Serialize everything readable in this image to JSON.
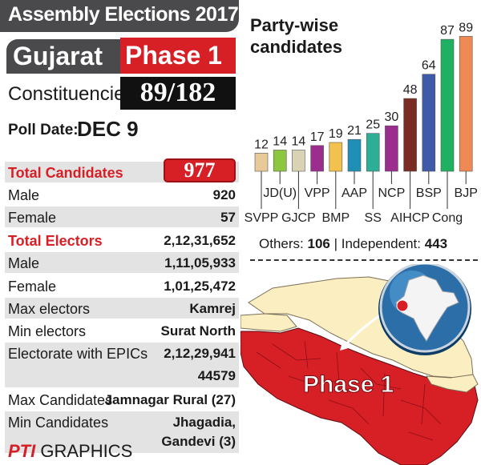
{
  "header": {
    "title": "Assembly Elections 2017"
  },
  "state": "Gujarat",
  "phase": "Phase 1",
  "constituencies": {
    "label": "Constituencies",
    "value": "89/182"
  },
  "poll_date": {
    "label": "Poll Date:",
    "value": "DEC 9"
  },
  "stats": {
    "total_candidates": {
      "label": "Total Candidates",
      "value": "977"
    },
    "male_candidates": {
      "label": "Male",
      "value": "920"
    },
    "female_candidates": {
      "label": "Female",
      "value": "57"
    },
    "total_electors": {
      "label": "Total Electors",
      "value": "2,12,31,652"
    },
    "male_electors": {
      "label": "Male",
      "value": "1,11,05,933"
    },
    "female_electors": {
      "label": "Female",
      "value": "1,01,25,472"
    },
    "max_electors": {
      "label": "Max electors",
      "value": "Kamrej"
    },
    "min_electors": {
      "label": "Min electors",
      "value": "Surat North"
    },
    "epic": {
      "label": "Electorate with EPICs",
      "value": "2,12,29,941",
      "value2": "44579"
    },
    "max_candidates": {
      "label": "Max Candidates",
      "value": "Jamnagar Rural (27)"
    },
    "min_candidates": {
      "label": "Min Candidates",
      "value": "Jhagadia,",
      "value2": "Gandevi (3)"
    }
  },
  "chart_data": {
    "type": "bar",
    "title": "Party-wise candidates",
    "categories": [
      "SVPP",
      "JD(U)",
      "GJCP",
      "VPP",
      "BMP",
      "AAP",
      "SS",
      "NCP",
      "AIHCP",
      "BSP",
      "Cong",
      "BJP"
    ],
    "values": [
      12,
      14,
      14,
      17,
      19,
      21,
      25,
      30,
      48,
      64,
      87,
      89
    ],
    "colors": [
      "#e8c99a",
      "#8dc63f",
      "#d9d2b5",
      "#9b2d8e",
      "#f2c14e",
      "#1f8fb5",
      "#2fae96",
      "#9b2d8e",
      "#7a2b22",
      "#3f5aa8",
      "#1fb161",
      "#f08a55"
    ],
    "label_rows": [
      1,
      0,
      1,
      0,
      1,
      0,
      1,
      0,
      1,
      0,
      1,
      0
    ],
    "ylim": [
      0,
      95
    ]
  },
  "others": {
    "label": "Others:",
    "value": "106",
    "label2": "Independent:",
    "value2": "443"
  },
  "map": {
    "label": "Phase 1"
  },
  "footer": {
    "brand": "PTI",
    "text": "GRAPHICS"
  },
  "colors": {
    "red": "#d71f26",
    "dark": "#4a4a4d",
    "map_yellow": "#fbeec1",
    "map_red": "#d71f26"
  }
}
